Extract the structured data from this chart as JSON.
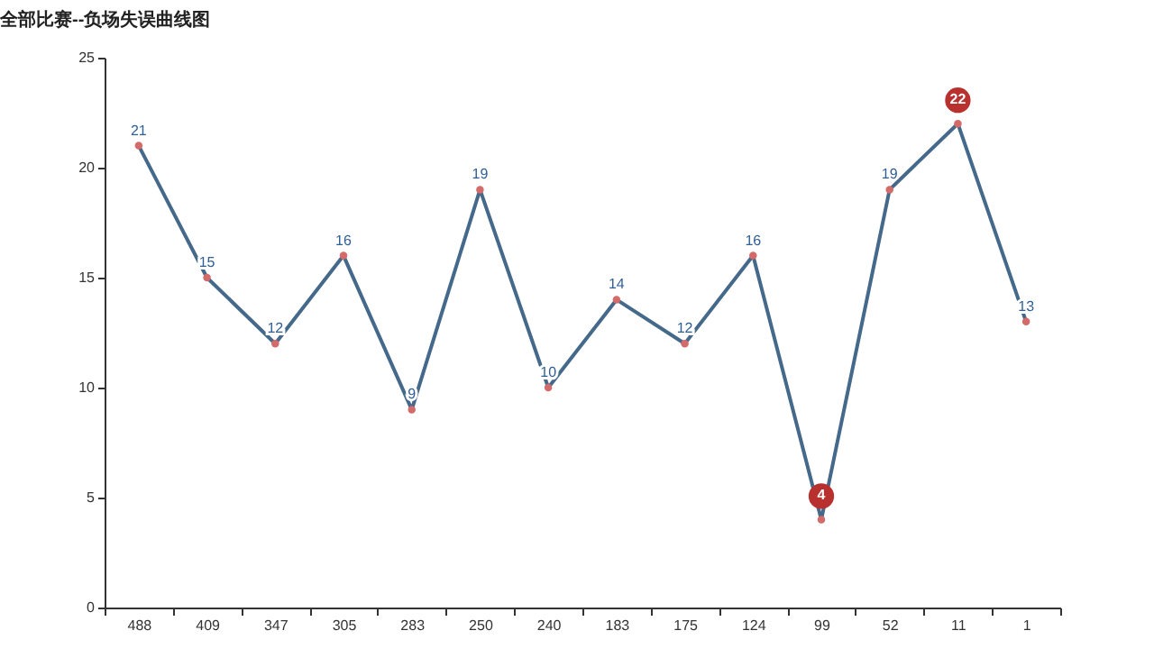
{
  "chart_data": {
    "type": "line",
    "title": "全部比赛--负场失误曲线图",
    "categories": [
      "488",
      "409",
      "347",
      "305",
      "283",
      "250",
      "240",
      "183",
      "175",
      "124",
      "99",
      "52",
      "11",
      "1"
    ],
    "series": [
      {
        "color": "#44698a",
        "values": [
          21,
          15,
          12,
          16,
          9,
          19,
          10,
          14,
          12,
          16,
          4,
          19,
          22,
          13
        ]
      }
    ],
    "ylim": [
      0,
      25
    ],
    "yticks": [
      0,
      5,
      10,
      15,
      20,
      25
    ],
    "grid": false,
    "marker": "circle",
    "line_style": "solid",
    "value_labels": [
      "21",
      "15",
      "12",
      "16",
      "9",
      "19",
      "10",
      "14",
      "12",
      "16",
      null,
      "19",
      null,
      "13"
    ],
    "annotations": [
      {
        "text": "22",
        "x": "11",
        "y": 22
      },
      {
        "text": "4",
        "x": "99",
        "y": 4
      }
    ]
  }
}
